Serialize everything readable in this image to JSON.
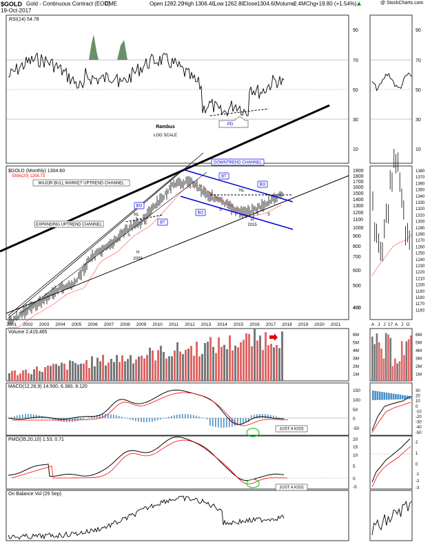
{
  "header": {
    "symbol": "$GOLD",
    "name": "Gold - Continuous Contract (EOD)",
    "exchange": "CME",
    "date": "19-Oct-2017",
    "open_label": "Open",
    "open": "1282.20",
    "high_label": "High",
    "high": "1306.40",
    "low_label": "Low",
    "low": "1262.80",
    "close_label": "Close",
    "close": "1304.60",
    "volume_label": "Volume",
    "volume": "2.4M",
    "chg_label": "Chg",
    "chg": "+19.80 (+1.54%)",
    "watermark": "@ StockCharts.com"
  },
  "colors": {
    "up_bar": "#000000",
    "volume_up": "#e06666",
    "volume_down": "#777777",
    "ema": "#ff0000",
    "signal": "#ff0000",
    "histogram": "#4a90c8",
    "rsi_fill": "#6b8f6b",
    "annotation_blue": "#0000dd",
    "green_circle": "#22cc22"
  },
  "rsi": {
    "title": "RSI(14) 54.78",
    "levels": [
      "90",
      "70",
      "50",
      "30",
      "10"
    ],
    "pd_label": "PD",
    "note_line1": "Rambus",
    "note_line2": "LOG SCALE"
  },
  "price": {
    "title": "$GOLD (Monthly) 1304.60",
    "ema_label": "EMA(20) 1258.73",
    "axis": [
      "1900",
      "1800",
      "1700",
      "1600",
      "1500",
      "1400",
      "1300",
      "1200",
      "1100",
      "1000",
      "900",
      "800",
      "700",
      "600",
      "500",
      "400",
      "300"
    ],
    "right_axis": [
      "1380",
      "1370",
      "1360",
      "1350",
      "1340",
      "1330",
      "1320",
      "1310",
      "1300",
      "1290",
      "1280",
      "1270",
      "1260",
      "1250",
      "1240",
      "1230",
      "1220",
      "1210",
      "1200",
      "1190",
      "1180",
      "1170",
      "1160"
    ],
    "years": [
      "2001",
      "2002",
      "2003",
      "2004",
      "2005",
      "2006",
      "2007",
      "2008",
      "2009",
      "2010",
      "2011",
      "2012",
      "2013",
      "2014",
      "2015",
      "2016",
      "2017",
      "2018",
      "2019",
      "2020",
      "2021"
    ],
    "right_months": [
      "A",
      "J",
      "J",
      "17",
      "A",
      "J",
      "O"
    ],
    "callouts": {
      "major": "MAJOR BULL MARKET UPTREND CHANNEL",
      "expanding": "EXPANDING UPTREND CHANNEL",
      "downtrend": "DOWNTREND CHANNEL",
      "bo1": "BO",
      "bt1": "BT",
      "bo2": "BO",
      "bt2": "BT",
      "bo3": "BO",
      "nl1": "NL",
      "nl2": "NL",
      "s1": "S",
      "s2": "S",
      "s3": "S",
      "s4": "S",
      "h1": "H",
      "h2": "H",
      "y2008": "2008",
      "y2015": "2015"
    }
  },
  "volume": {
    "title": "Volume 2,419,465",
    "axis": [
      "6M",
      "5M",
      "4M",
      "3M",
      "2M",
      "1M"
    ]
  },
  "macd": {
    "title": "MACD(12,26,9) 14.500, 6.380, 8.120",
    "axis": [
      "150",
      "100",
      "50",
      "0",
      "-50"
    ],
    "right_axis": [
      "30",
      "20",
      "10",
      "0",
      "-10",
      "-20",
      "-30",
      "-40",
      "-50"
    ],
    "kiss": "JUST A KISS"
  },
  "pmo": {
    "title": "PMO(35,20,10) 1.53, 0.71",
    "axis": [
      "20",
      "15",
      "10",
      "5",
      "0",
      "-5"
    ],
    "right_axis": [
      "2",
      "1",
      "0",
      "-1",
      "-2",
      "-3"
    ],
    "kiss": "JUST A KISS"
  },
  "obv": {
    "title": "On Balance Vol (29 Sep)"
  },
  "chart_data": {
    "type": "line",
    "title": "$GOLD Gold - Continuous Contract (EOD) CME",
    "x": [
      2001,
      2002,
      2003,
      2004,
      2005,
      2006,
      2007,
      2008,
      2009,
      2010,
      2011,
      2012,
      2013,
      2014,
      2015,
      2016,
      2017
    ],
    "series": [
      {
        "name": "$GOLD (Monthly)",
        "values": [
          265,
          310,
          350,
          410,
          440,
          620,
          700,
          860,
          980,
          1230,
          1570,
          1660,
          1400,
          1250,
          1100,
          1150,
          1300
        ]
      }
    ],
    "ylim": [
      250,
      1900
    ],
    "y_scale": "log"
  }
}
